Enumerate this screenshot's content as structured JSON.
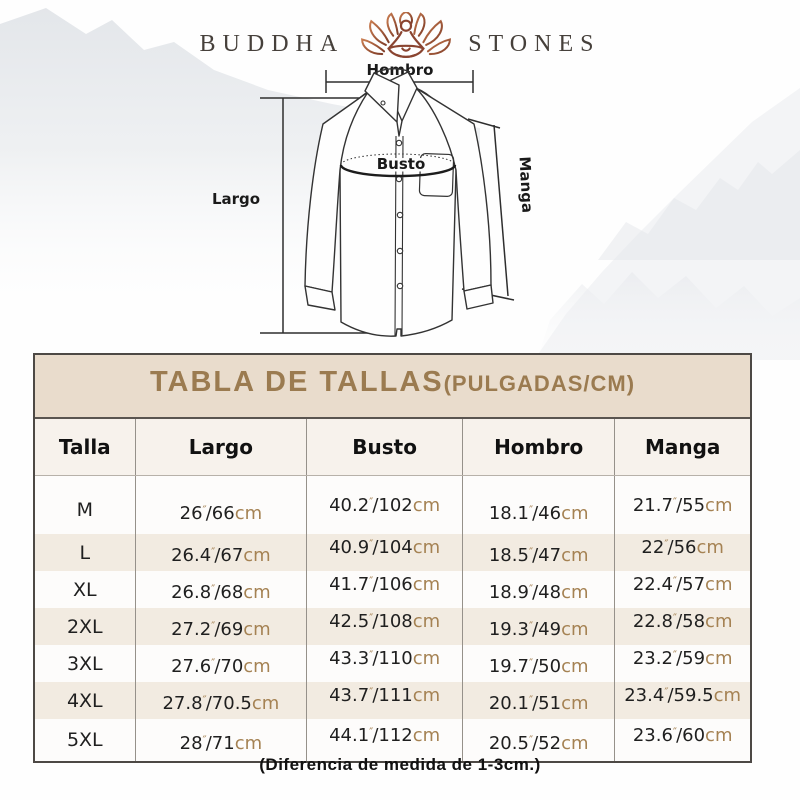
{
  "brand": {
    "name_left": "BUDDHA",
    "name_right": "STONES"
  },
  "diagram": {
    "shoulder_label": "Hombro",
    "chest_label": "Busto",
    "length_label": "Largo",
    "sleeve_label": "Manga"
  },
  "size_table": {
    "title_main": "TABLA DE TALLAS",
    "title_unit": "(PULGADAS/CM)",
    "columns": [
      "Talla",
      "Largo",
      "Busto",
      "Hombro",
      "Manga"
    ],
    "rows": [
      {
        "talla": "M",
        "largo": "26″/66cm",
        "busto": "40.2″/102cm",
        "hombro": "18.1″/46cm",
        "manga": "21.7″/55cm"
      },
      {
        "talla": "L",
        "largo": "26.4″/67cm",
        "busto": "40.9″/104cm",
        "hombro": "18.5″/47cm",
        "manga": "22″/56cm"
      },
      {
        "talla": "XL",
        "largo": "26.8″/68cm",
        "busto": "41.7″/106cm",
        "hombro": "18.9″/48cm",
        "manga": "22.4″/57cm"
      },
      {
        "talla": "2XL",
        "largo": "27.2″/69cm",
        "busto": "42.5″/108cm",
        "hombro": "19.3″/49cm",
        "manga": "22.8″/58cm"
      },
      {
        "talla": "3XL",
        "largo": "27.6″/70cm",
        "busto": "43.3″/110cm",
        "hombro": "19.7″/50cm",
        "manga": "23.2″/59cm"
      },
      {
        "talla": "4XL",
        "largo": "27.8″/70.5cm",
        "busto": "43.7″/111cm",
        "hombro": "20.1″/51cm",
        "manga": "23.4″/59.5cm"
      },
      {
        "talla": "5XL",
        "largo": "28″/71cm",
        "busto": "44.1″/112cm",
        "hombro": "20.5″/52cm",
        "manga": "23.6″/60cm"
      }
    ],
    "colors": {
      "title_text": "#9b7b50",
      "header_band_bg": "#e9dccc",
      "column_header_bg": "#f7f2ec",
      "alt_row_bg": "#f2ebe1",
      "unit_text": "#a58253",
      "number_text": "#1f1f1f"
    }
  },
  "footer_note": "(Diferencia de medida de 1-3cm.)"
}
